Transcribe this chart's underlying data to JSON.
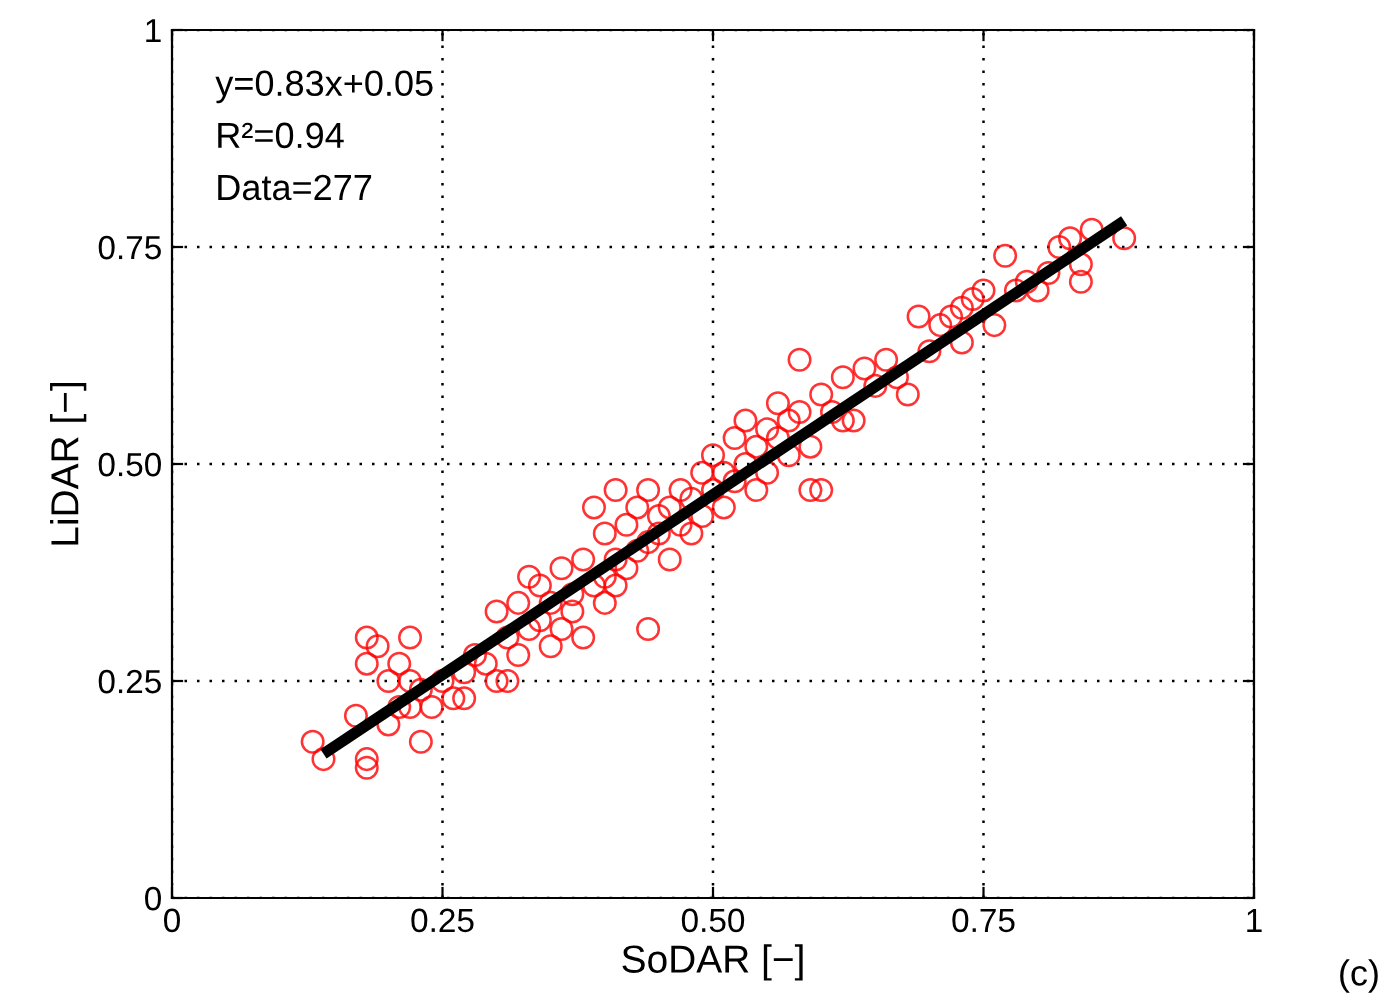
{
  "chart_data": {
    "type": "scatter",
    "xlabel": "SoDAR [−]",
    "ylabel": "LiDAR [−]",
    "xlim": [
      0,
      1
    ],
    "ylim": [
      0,
      1
    ],
    "xticks": [
      0,
      0.25,
      {
        "value": 0.5,
        "label": "0.50"
      },
      0.75,
      1
    ],
    "yticks": [
      0,
      0.25,
      {
        "value": 0.5,
        "label": "0.50"
      },
      0.75,
      1
    ],
    "grid": true,
    "marker": "circle",
    "annotations": [
      "y=0.83x+0.05",
      "R²=0.94",
      "Data=277",
      "(c)"
    ],
    "series": [
      {
        "color": "#ff0000",
        "x": [
          0.13,
          0.14,
          0.17,
          0.18,
          0.18,
          0.18,
          0.18,
          0.19,
          0.2,
          0.2,
          0.21,
          0.21,
          0.22,
          0.22,
          0.22,
          0.23,
          0.23,
          0.24,
          0.25,
          0.26,
          0.27,
          0.27,
          0.28,
          0.29,
          0.3,
          0.31,
          0.3,
          0.31,
          0.32,
          0.32,
          0.33,
          0.33,
          0.34,
          0.34,
          0.35,
          0.35,
          0.36,
          0.36,
          0.37,
          0.37,
          0.38,
          0.38,
          0.39,
          0.39,
          0.4,
          0.4,
          0.4,
          0.41,
          0.41,
          0.41,
          0.42,
          0.42,
          0.43,
          0.43,
          0.44,
          0.44,
          0.44,
          0.45,
          0.45,
          0.46,
          0.46,
          0.47,
          0.47,
          0.48,
          0.48,
          0.49,
          0.49,
          0.5,
          0.5,
          0.51,
          0.51,
          0.52,
          0.52,
          0.53,
          0.53,
          0.54,
          0.54,
          0.55,
          0.55,
          0.56,
          0.56,
          0.57,
          0.57,
          0.58,
          0.58,
          0.59,
          0.59,
          0.6,
          0.6,
          0.61,
          0.62,
          0.62,
          0.63,
          0.64,
          0.65,
          0.66,
          0.67,
          0.68,
          0.69,
          0.7,
          0.71,
          0.72,
          0.73,
          0.73,
          0.74,
          0.75,
          0.76,
          0.77,
          0.78,
          0.79,
          0.8,
          0.81,
          0.82,
          0.83,
          0.84,
          0.84,
          0.85,
          0.88
        ],
        "values": [
          0.18,
          0.16,
          0.21,
          0.16,
          0.15,
          0.27,
          0.3,
          0.29,
          0.25,
          0.2,
          0.22,
          0.27,
          0.3,
          0.25,
          0.22,
          0.18,
          0.24,
          0.22,
          0.25,
          0.23,
          0.23,
          0.26,
          0.28,
          0.27,
          0.25,
          0.25,
          0.33,
          0.3,
          0.34,
          0.28,
          0.37,
          0.31,
          0.32,
          0.36,
          0.29,
          0.34,
          0.31,
          0.38,
          0.33,
          0.35,
          0.39,
          0.3,
          0.36,
          0.45,
          0.34,
          0.37,
          0.42,
          0.36,
          0.39,
          0.47,
          0.38,
          0.43,
          0.4,
          0.45,
          0.31,
          0.41,
          0.47,
          0.42,
          0.44,
          0.39,
          0.45,
          0.43,
          0.47,
          0.42,
          0.46,
          0.49,
          0.44,
          0.47,
          0.51,
          0.45,
          0.49,
          0.53,
          0.48,
          0.5,
          0.55,
          0.47,
          0.52,
          0.54,
          0.49,
          0.53,
          0.57,
          0.55,
          0.51,
          0.62,
          0.56,
          0.52,
          0.47,
          0.47,
          0.58,
          0.56,
          0.6,
          0.55,
          0.55,
          0.61,
          0.59,
          0.62,
          0.6,
          0.58,
          0.67,
          0.63,
          0.66,
          0.67,
          0.68,
          0.64,
          0.69,
          0.7,
          0.66,
          0.74,
          0.7,
          0.71,
          0.7,
          0.72,
          0.75,
          0.76,
          0.73,
          0.71,
          0.77,
          0.76
        ]
      },
      {
        "type": "line",
        "color": "#000000",
        "marker": "none",
        "line_style": "solid",
        "x": [
          0.14,
          0.88
        ],
        "values": [
          0.166,
          0.78
        ]
      }
    ]
  }
}
